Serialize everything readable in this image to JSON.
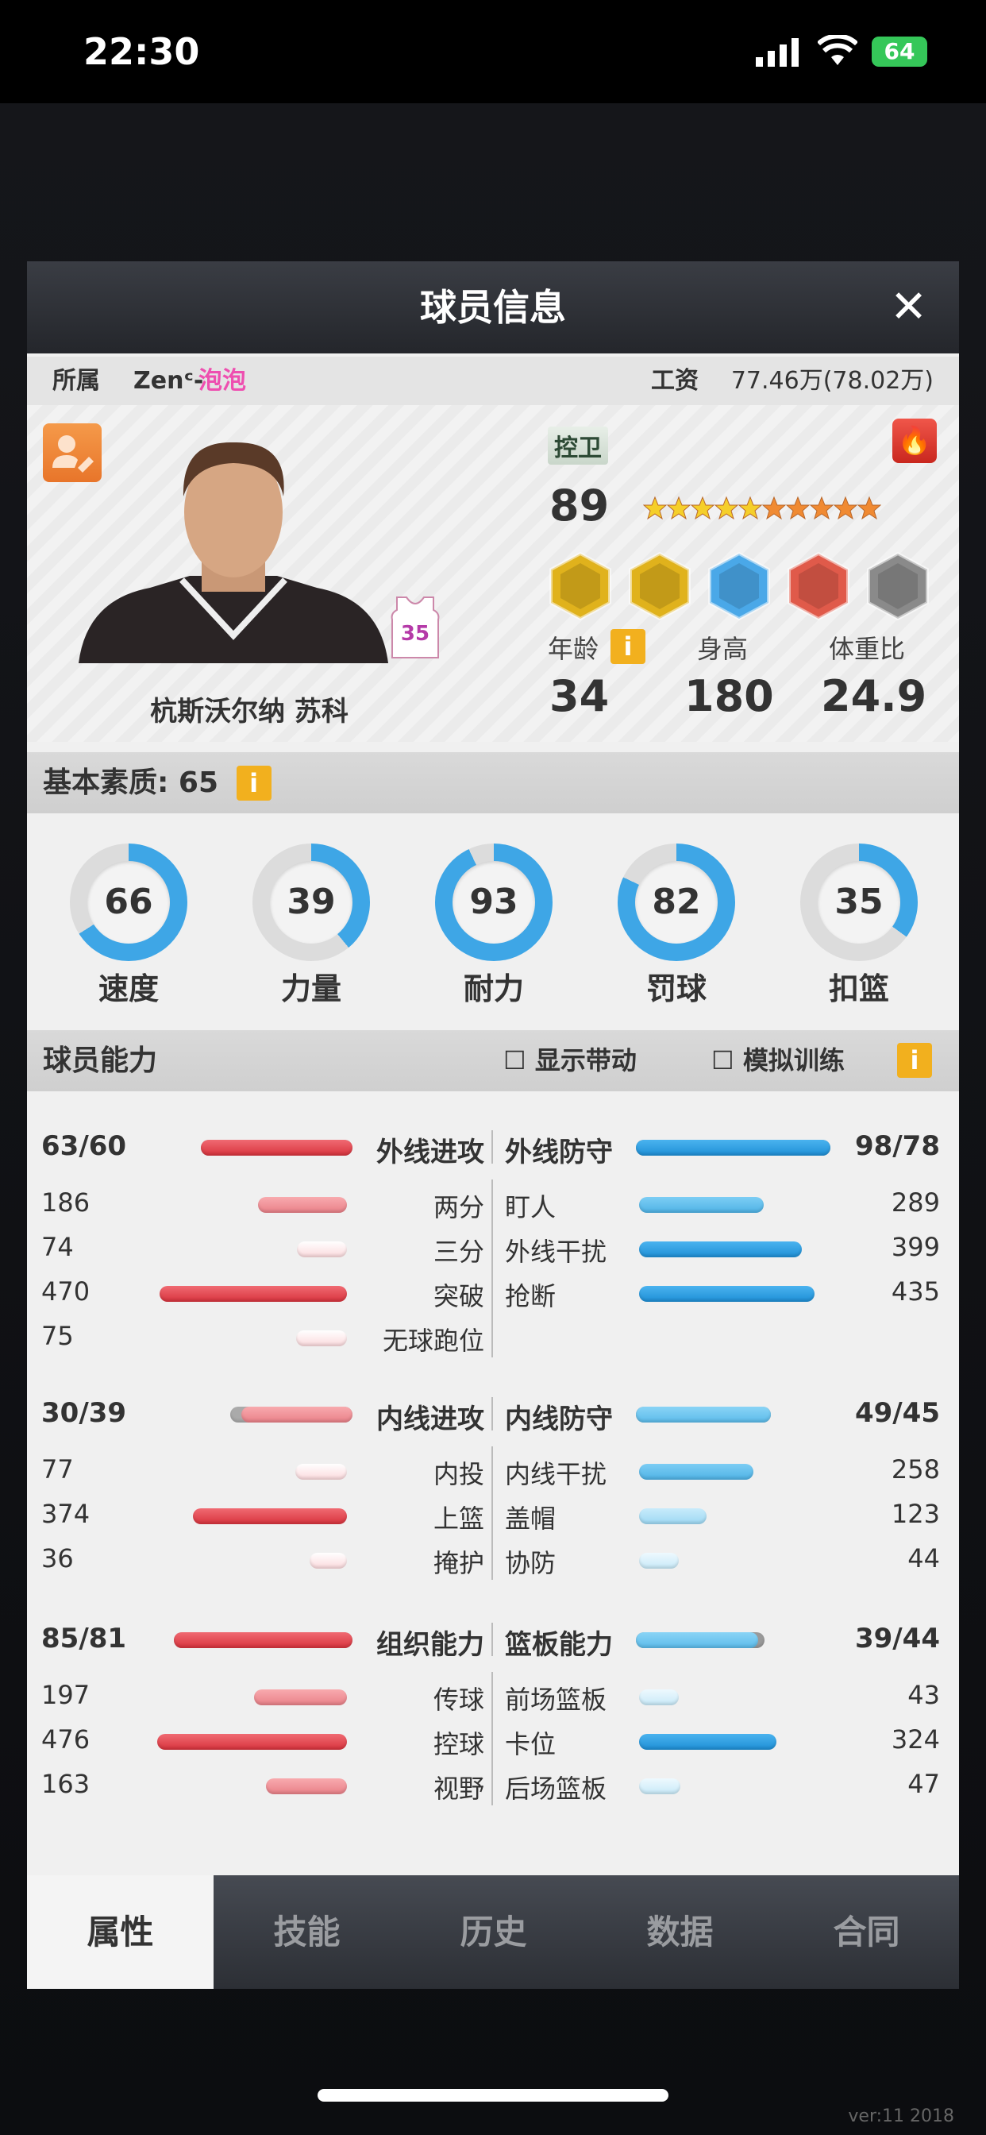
{
  "status": {
    "time": "22:30",
    "battery": "64"
  },
  "modal": {
    "title": "球员信息",
    "close": "✕"
  },
  "info": {
    "team_label": "所属",
    "team_prefix": "Zenᶜ-",
    "team_name": "泡泡",
    "salary_label": "工资",
    "salary": "77.46万(78.02万)"
  },
  "player": {
    "name": "杭斯沃尔纳 苏科",
    "jersey": "35",
    "position": "控卫",
    "overall": "89",
    "stars_gold": 5,
    "stars_orange": 5,
    "badges": [
      {
        "icon": "player-silhouette",
        "color": "#e0b21c"
      },
      {
        "icon": "lightning",
        "color": "#e0b21c"
      },
      {
        "icon": "player-silhouette",
        "color": "#4aa8e8"
      },
      {
        "icon": "player-silhouette",
        "color": "#e05a4a"
      },
      {
        "icon": "empty",
        "color": "#8a8a8a"
      }
    ],
    "age_label": "年龄",
    "age": "34",
    "height_label": "身高",
    "height": "180",
    "weight_label": "体重比",
    "weight": "24.9"
  },
  "basic": {
    "title": "基本素质: 65",
    "info": "i",
    "stats": [
      {
        "label": "速度",
        "value": 66
      },
      {
        "label": "力量",
        "value": 39
      },
      {
        "label": "耐力",
        "value": 93
      },
      {
        "label": "罚球",
        "value": 82
      },
      {
        "label": "扣篮",
        "value": 35
      }
    ]
  },
  "ability": {
    "title": "球员能力",
    "show_driving": "显示带动",
    "sim_training": "模拟训练",
    "info": "i"
  },
  "groups": [
    {
      "left": {
        "label": "外线进攻",
        "value": "63/60",
        "cur": 63,
        "max": 60
      },
      "right": {
        "label": "外线防守",
        "value": "98/78",
        "cur": 98,
        "max": 78
      },
      "left_items": [
        {
          "label": "两分",
          "value": 186
        },
        {
          "label": "三分",
          "value": 74
        },
        {
          "label": "突破",
          "value": 470
        },
        {
          "label": "无球跑位",
          "value": 75
        }
      ],
      "right_items": [
        {
          "label": "盯人",
          "value": 289
        },
        {
          "label": "外线干扰",
          "value": 399
        },
        {
          "label": "抢断",
          "value": 435
        }
      ]
    },
    {
      "left": {
        "label": "内线进攻",
        "value": "30/39",
        "cur": 30,
        "max": 39
      },
      "right": {
        "label": "内线防守",
        "value": "49/45",
        "cur": 49,
        "max": 45
      },
      "left_items": [
        {
          "label": "内投",
          "value": 77
        },
        {
          "label": "上篮",
          "value": 374
        },
        {
          "label": "掩护",
          "value": 36
        }
      ],
      "right_items": [
        {
          "label": "内线干扰",
          "value": 258
        },
        {
          "label": "盖帽",
          "value": 123
        },
        {
          "label": "协防",
          "value": 44
        }
      ]
    },
    {
      "left": {
        "label": "组织能力",
        "value": "85/81",
        "cur": 85,
        "max": 81
      },
      "right": {
        "label": "篮板能力",
        "value": "39/44",
        "cur": 39,
        "max": 44
      },
      "left_items": [
        {
          "label": "传球",
          "value": 197
        },
        {
          "label": "控球",
          "value": 476
        },
        {
          "label": "视野",
          "value": 163
        }
      ],
      "right_items": [
        {
          "label": "前场篮板",
          "value": 43
        },
        {
          "label": "卡位",
          "value": 324
        },
        {
          "label": "后场篮板",
          "value": 47
        }
      ]
    }
  ],
  "tabs": [
    {
      "label": "属性",
      "active": true
    },
    {
      "label": "技能"
    },
    {
      "label": "历史"
    },
    {
      "label": "数据"
    },
    {
      "label": "合同"
    }
  ],
  "version": "ver:11  2018",
  "colors": {
    "red": "#e2454f",
    "blue": "#2a9be0",
    "ring": "#3ea6e6",
    "gold": "#f2b01e"
  }
}
